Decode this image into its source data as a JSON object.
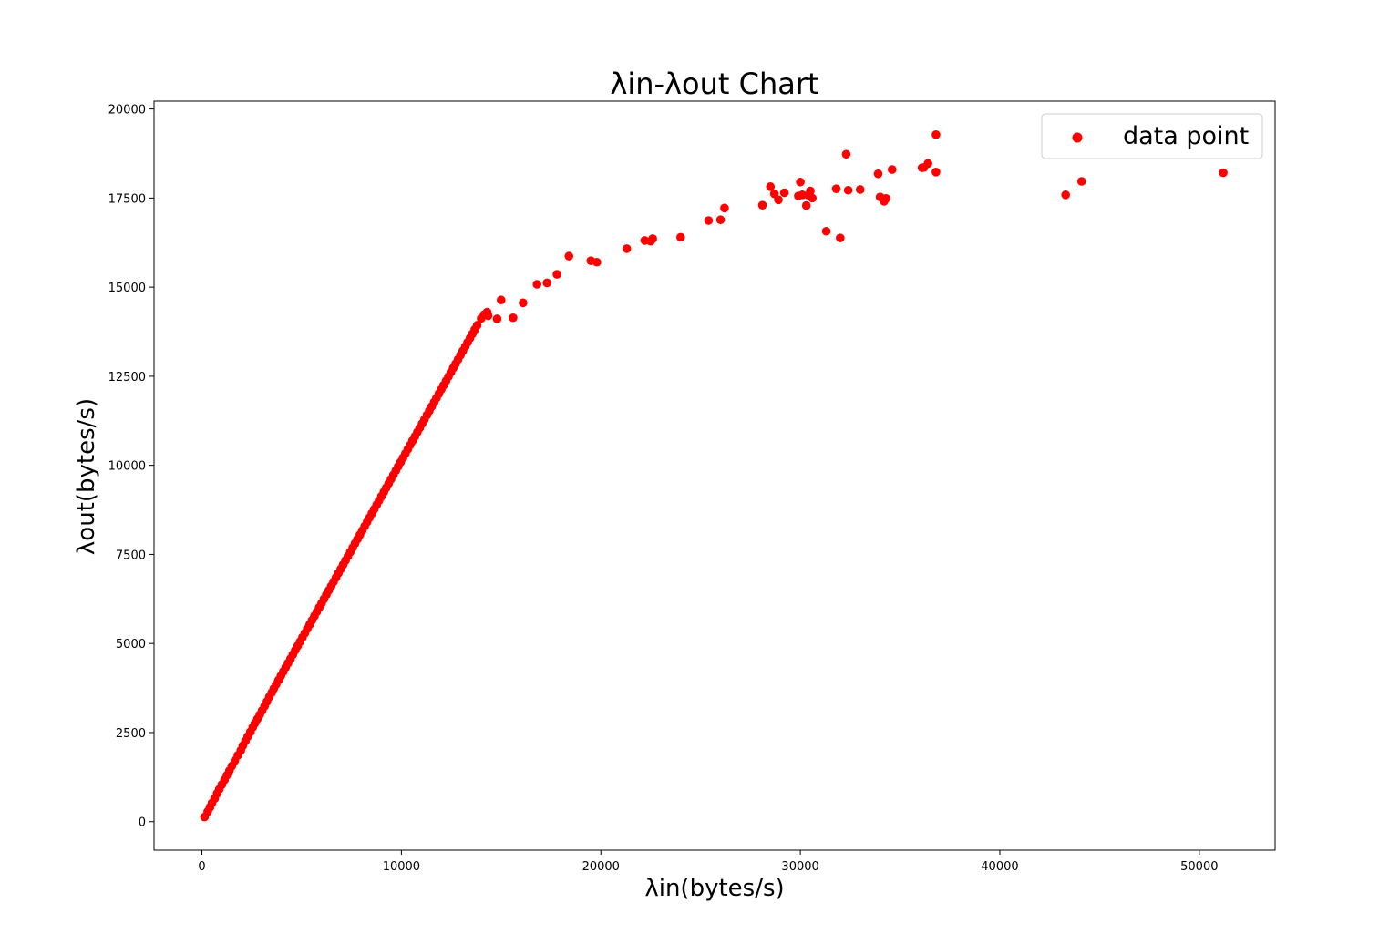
{
  "chart_data": {
    "type": "scatter",
    "title": "λin-λout Chart",
    "xlabel": "λin(bytes/s)",
    "ylabel": "λout(bytes/s)",
    "xlim": [
      -2400,
      53800
    ],
    "ylim": [
      -800,
      20220
    ],
    "x_ticks": [
      0,
      10000,
      20000,
      30000,
      40000,
      50000
    ],
    "y_ticks": [
      0,
      2500,
      5000,
      7500,
      10000,
      12500,
      15000,
      17500,
      20000
    ],
    "x_tick_labels": [
      "0",
      "10000",
      "20000",
      "30000",
      "40000",
      "50000"
    ],
    "y_tick_labels": [
      "0",
      "2500",
      "5000",
      "7500",
      "10000",
      "12500",
      "15000",
      "17500",
      "20000"
    ],
    "grid": false,
    "legend": {
      "position": "top-right",
      "entries": [
        "data point"
      ]
    },
    "marker_color": "#ff0000",
    "series": [
      {
        "name": "data point",
        "x": [
          130,
          290,
          400,
          500,
          640,
          760,
          870,
          1000,
          1130,
          1250,
          1380,
          1500,
          1650,
          1800,
          1950,
          2050,
          2180,
          2300,
          2430,
          2550,
          2660,
          2780,
          2900,
          3020,
          3140,
          3260,
          3380,
          3500,
          3600,
          3720,
          3840,
          3960,
          4080,
          4200,
          4320,
          4440,
          4560,
          4680,
          4800,
          4920,
          5040,
          5160,
          5280,
          5400,
          5520,
          5640,
          5760,
          5880,
          6000,
          6120,
          6240,
          6360,
          6480,
          6600,
          6720,
          6840,
          6960,
          7080,
          7200,
          7320,
          7440,
          7560,
          7680,
          7800,
          7920,
          8040,
          8160,
          8280,
          8400,
          8520,
          8640,
          8760,
          8880,
          9000,
          9120,
          9240,
          9360,
          9480,
          9600,
          9720,
          9840,
          9960,
          10080,
          10200,
          10320,
          10440,
          10560,
          10680,
          10800,
          10920,
          11040,
          11160,
          11280,
          11400,
          11520,
          11640,
          11760,
          11880,
          12000,
          12120,
          12240,
          12360,
          12480,
          12600,
          12720,
          12840,
          12960,
          13080,
          13200,
          13320,
          13440,
          13560,
          13680,
          13800,
          14000,
          14150,
          14300,
          14350,
          14800,
          15000,
          15600,
          16100,
          16800,
          17300,
          17800,
          18400,
          19500,
          19800,
          21300,
          22200,
          22500,
          22600,
          24000,
          25400,
          26000,
          26200,
          28100,
          28500,
          28700,
          28900,
          29200,
          29900,
          30000,
          30100,
          30300,
          30400,
          30500,
          30600,
          31300,
          31800,
          32000,
          32300,
          32400,
          33000,
          33900,
          34000,
          34200,
          34300,
          34600,
          36100,
          36200,
          36400,
          36800,
          36800,
          43300,
          44100,
          51200
        ],
        "y": [
          130,
          280,
          400,
          520,
          650,
          790,
          910,
          1040,
          1170,
          1300,
          1430,
          1560,
          1710,
          1860,
          2000,
          2130,
          2260,
          2390,
          2520,
          2650,
          2760,
          2880,
          3000,
          3120,
          3240,
          3370,
          3500,
          3620,
          3730,
          3850,
          3970,
          4090,
          4210,
          4330,
          4450,
          4570,
          4690,
          4810,
          4930,
          5050,
          5170,
          5290,
          5410,
          5530,
          5650,
          5770,
          5890,
          6010,
          6130,
          6250,
          6370,
          6490,
          6610,
          6730,
          6850,
          6970,
          7090,
          7210,
          7330,
          7450,
          7570,
          7690,
          7810,
          7930,
          8050,
          8170,
          8290,
          8410,
          8530,
          8650,
          8770,
          8890,
          9010,
          9130,
          9250,
          9370,
          9490,
          9610,
          9730,
          9850,
          9970,
          10090,
          10210,
          10330,
          10450,
          10570,
          10690,
          10810,
          10930,
          11050,
          11170,
          11290,
          11410,
          11530,
          11650,
          11770,
          11890,
          12010,
          12130,
          12250,
          12370,
          12490,
          12610,
          12730,
          12850,
          12970,
          13090,
          13210,
          13330,
          13450,
          13570,
          13690,
          13810,
          13930,
          14120,
          14230,
          14300,
          14200,
          14110,
          14640,
          14140,
          14560,
          15080,
          15120,
          15360,
          15870,
          15740,
          15700,
          16080,
          16310,
          16290,
          16360,
          16400,
          16870,
          16890,
          17220,
          17300,
          17820,
          17620,
          17450,
          17650,
          17560,
          17950,
          17590,
          17290,
          17580,
          17700,
          17500,
          16570,
          17760,
          16380,
          18730,
          17720,
          17740,
          18180,
          17530,
          17410,
          17490,
          18300,
          18350,
          18360,
          18470,
          18230,
          19280,
          17590,
          17970,
          18210
        ]
      }
    ]
  }
}
